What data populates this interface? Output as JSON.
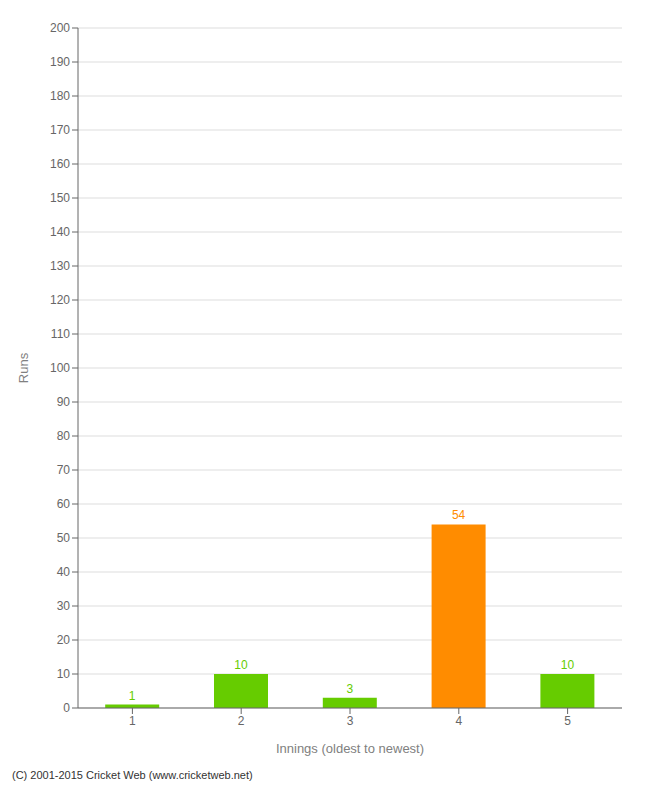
{
  "chart_data": {
    "type": "bar",
    "xlabel": "Innings (oldest to newest)",
    "ylabel": "Runs",
    "categories": [
      1,
      2,
      3,
      4,
      5
    ],
    "values": [
      1,
      10,
      3,
      54,
      10
    ],
    "colors": [
      "#66cc00",
      "#66cc00",
      "#66cc00",
      "#ff8c00",
      "#66cc00"
    ],
    "ylim": [
      0,
      200
    ],
    "yticks": [
      0,
      10,
      20,
      30,
      40,
      50,
      60,
      70,
      80,
      90,
      100,
      110,
      120,
      130,
      140,
      150,
      160,
      170,
      180,
      190,
      200
    ],
    "grid": true,
    "data_labels": true,
    "annotations": [
      "(C) 2001-2015 Cricket Web (www.cricketweb.net)"
    ]
  }
}
